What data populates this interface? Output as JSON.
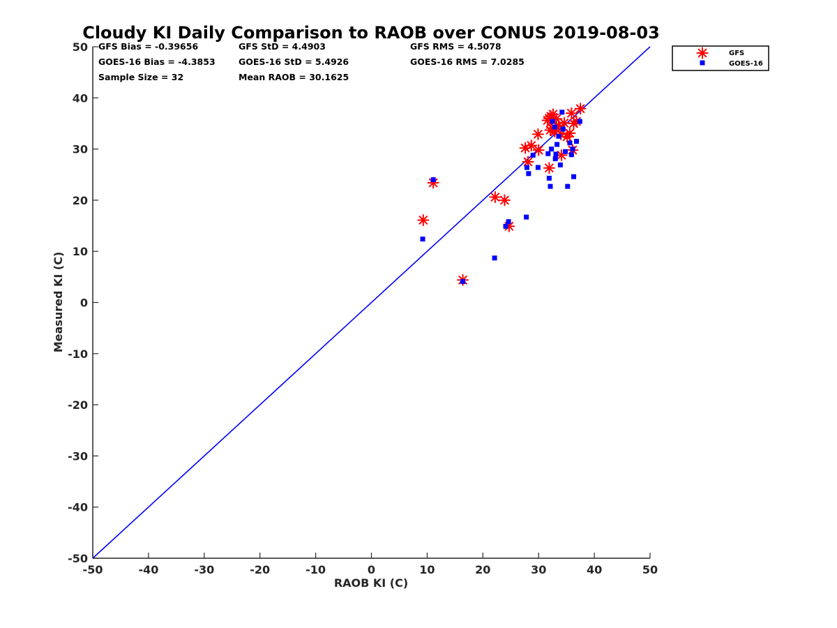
{
  "chart_data": {
    "type": "scatter",
    "title": "Cloudy KI Daily Comparison to RAOB over CONUS 2019-08-03",
    "xlabel": "RAOB KI (C)",
    "ylabel": "Measured KI (C)",
    "xlim": [
      -50,
      50
    ],
    "ylim": [
      -50,
      50
    ],
    "xticks": [
      -50,
      -40,
      -30,
      -20,
      -10,
      0,
      10,
      20,
      30,
      40,
      50
    ],
    "yticks": [
      -50,
      -40,
      -30,
      -20,
      -10,
      0,
      10,
      20,
      30,
      40,
      50
    ],
    "grid": false,
    "legend_position": "outside-top-right",
    "reference_line": {
      "type": "one-to-one",
      "from": [
        -50,
        -50
      ],
      "to": [
        50,
        50
      ],
      "color": "#0000ff"
    },
    "stats": [
      [
        "GFS Bias = -0.39656",
        "GFS StD = 4.4903",
        "GFS RMS = 4.5078"
      ],
      [
        "GOES-16 Bias = -4.3853",
        "GOES-16 StD = 5.4926",
        "GOES-16 RMS = 7.0285"
      ],
      [
        "Sample Size = 32",
        "Mean RAOB = 30.1625",
        ""
      ]
    ],
    "series": [
      {
        "name": "GFS",
        "marker": "asterisk",
        "color": "#ff0000",
        "x": [
          9.3,
          11.1,
          16.4,
          22.2,
          23.9,
          24.7,
          27.6,
          28.1,
          28.7,
          29.9,
          30.0,
          31.6,
          31.9,
          32.1,
          32.2,
          32.4,
          32.6,
          32.9,
          33.2,
          33.6,
          34.1,
          34.6,
          35.1,
          35.6,
          35.9,
          36.1,
          36.3,
          36.8,
          37.5,
          31.9,
          34.0,
          33.0
        ],
        "y": [
          16.1,
          23.4,
          4.4,
          20.6,
          20.0,
          14.9,
          30.2,
          27.5,
          30.7,
          32.9,
          29.8,
          35.6,
          26.3,
          33.7,
          36.4,
          34.1,
          36.8,
          33.4,
          35.9,
          34.6,
          28.8,
          35.1,
          32.4,
          33.1,
          37.0,
          29.8,
          35.0,
          35.4,
          37.9,
          36.0,
          32.9,
          34.0
        ]
      },
      {
        "name": "GOES-16",
        "marker": "square",
        "color": "#0000ff",
        "x": [
          9.2,
          11.1,
          16.4,
          22.1,
          24.1,
          24.6,
          27.8,
          27.9,
          28.2,
          29.0,
          29.9,
          31.7,
          31.9,
          32.1,
          32.3,
          32.5,
          33.0,
          33.1,
          33.3,
          33.6,
          33.9,
          34.2,
          34.4,
          34.8,
          35.2,
          35.6,
          35.9,
          36.1,
          36.3,
          36.8,
          37.4,
          32.9
        ],
        "y": [
          12.4,
          24.0,
          4.1,
          8.7,
          14.9,
          15.8,
          16.7,
          26.4,
          25.2,
          28.8,
          26.4,
          29.1,
          24.3,
          22.7,
          30.0,
          35.4,
          28.1,
          29.0,
          30.9,
          32.5,
          26.9,
          37.2,
          33.9,
          29.5,
          22.7,
          31.2,
          28.9,
          30.0,
          24.6,
          31.5,
          35.4,
          34.3
        ]
      }
    ]
  }
}
